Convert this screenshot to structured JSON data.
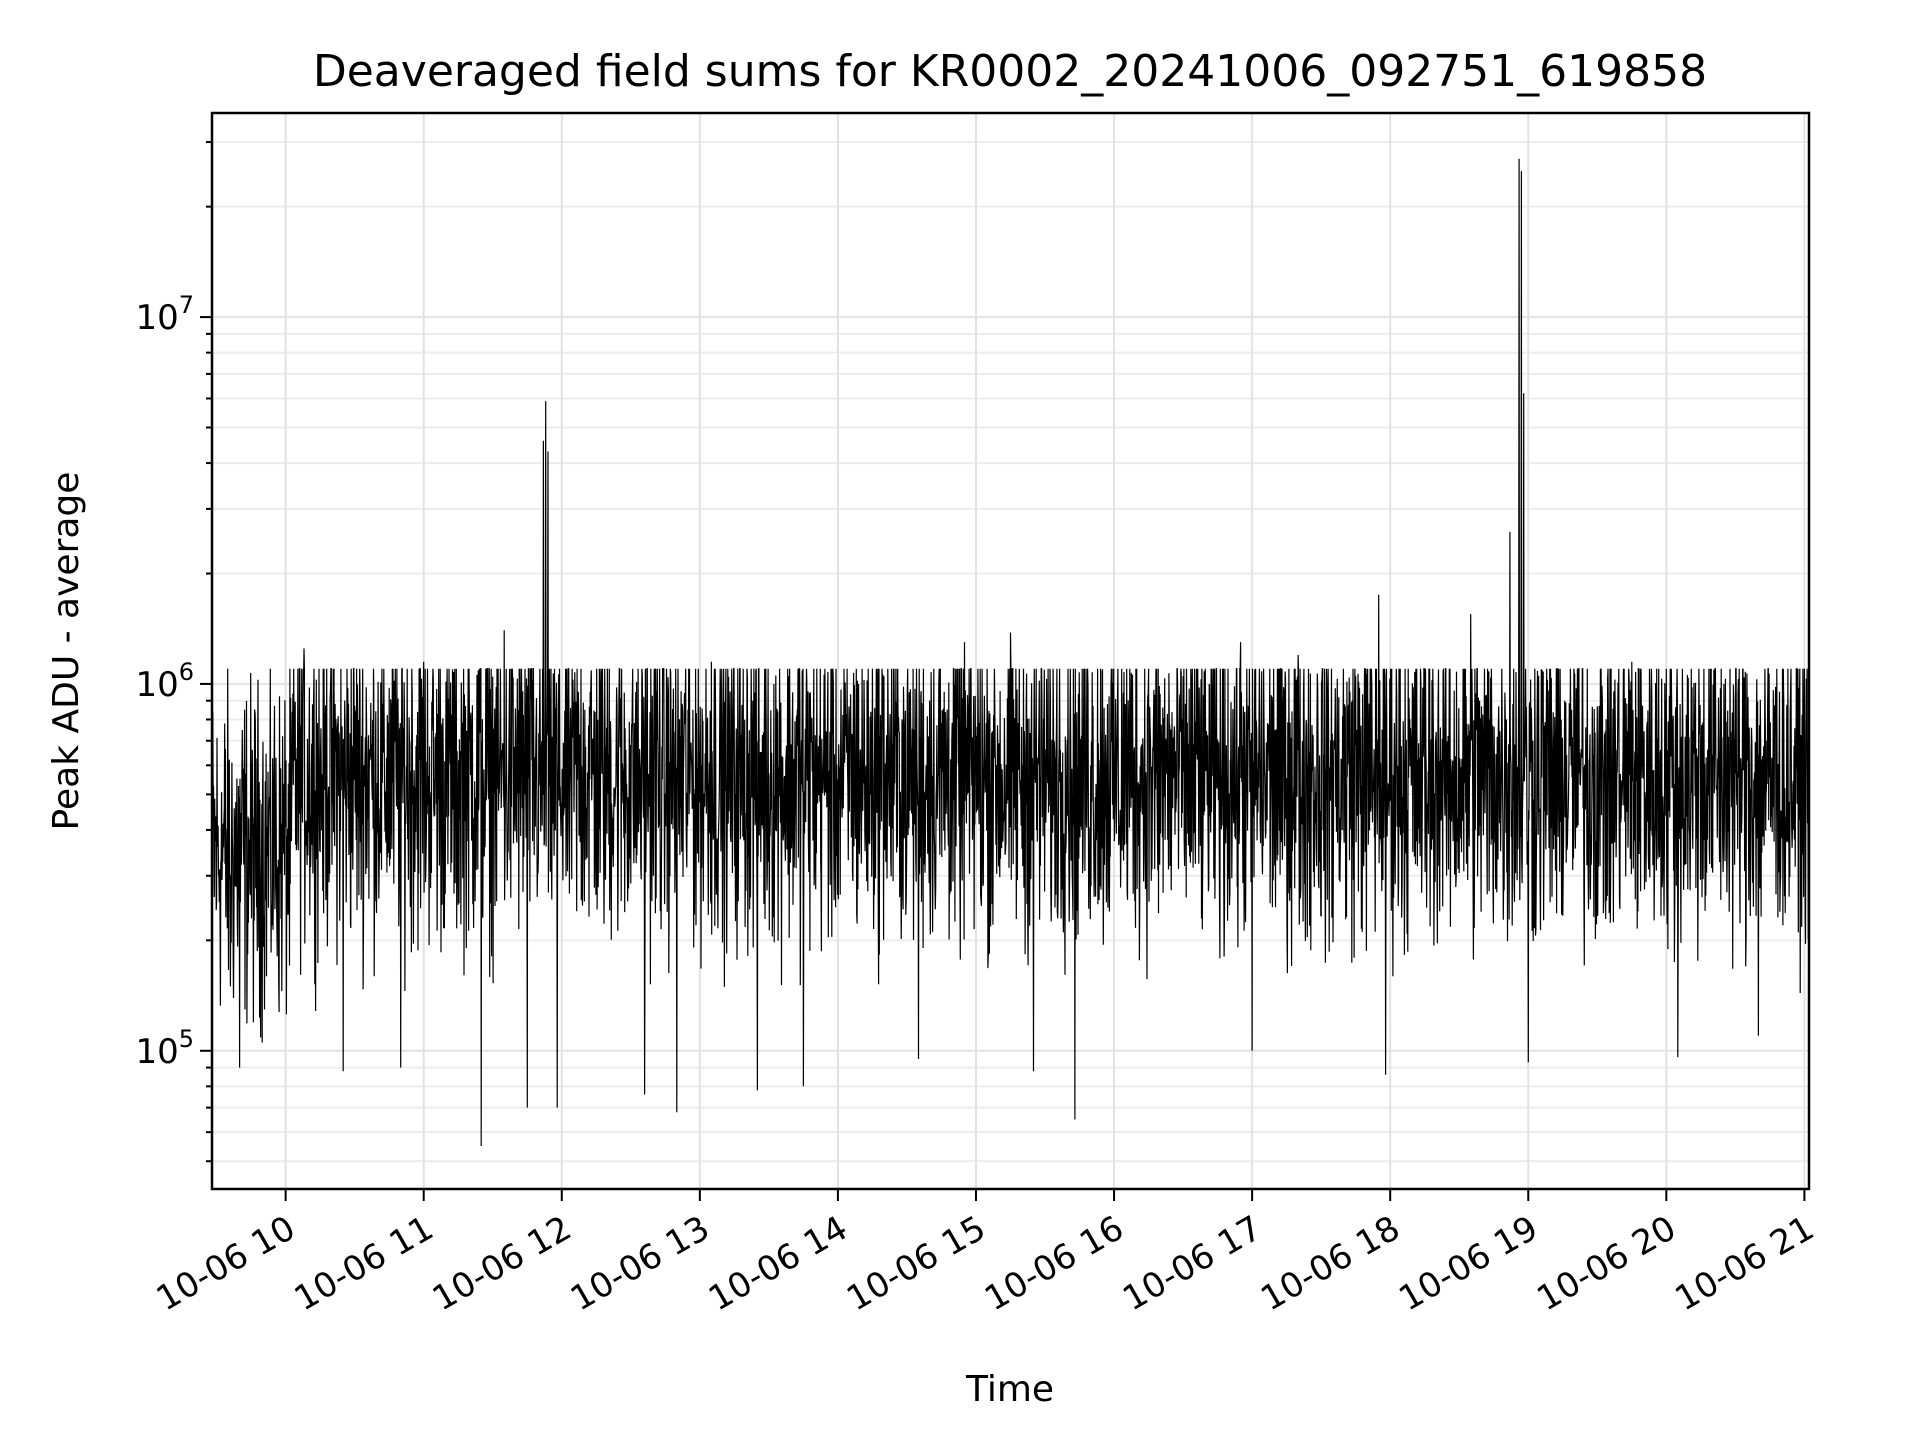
{
  "chart_data": {
    "type": "line",
    "title": "Deaveraged field sums for KR0002_20241006_092751_619858",
    "xlabel": "Time",
    "ylabel": "Peak ADU - average",
    "yscale": "log",
    "xlim": [
      "2024-10-06 09:28",
      "2024-10-06 21:02"
    ],
    "ylim": [
      42000,
      36000000
    ],
    "grid": true,
    "x_ticks": [
      "10-06 10",
      "10-06 11",
      "10-06 12",
      "10-06 13",
      "10-06 14",
      "10-06 15",
      "10-06 16",
      "10-06 17",
      "10-06 18",
      "10-06 19",
      "10-06 20",
      "10-06 21"
    ],
    "y_ticks": [
      {
        "value": 100000,
        "base": "10",
        "exp": "5"
      },
      {
        "value": 1000000,
        "base": "10",
        "exp": "6"
      },
      {
        "value": 10000000,
        "base": "10",
        "exp": "7"
      }
    ],
    "series": [
      {
        "color": "#000000",
        "points": [
          [
            "2024-10-06 09:28",
            260000
          ],
          [
            "2024-10-06 09:32",
            330000
          ],
          [
            "2024-10-06 09:36",
            150000
          ],
          [
            "2024-10-06 09:40",
            90000
          ],
          [
            "2024-10-06 09:45",
            420000
          ],
          [
            "2024-10-06 09:50",
            500000
          ],
          [
            "2024-10-06 09:55",
            620000
          ],
          [
            "2024-10-06 10:00",
            480000
          ],
          [
            "2024-10-06 10:08",
            1250000
          ],
          [
            "2024-10-06 10:15",
            350000
          ],
          [
            "2024-10-06 10:25",
            88000
          ],
          [
            "2024-10-06 10:35",
            980000
          ],
          [
            "2024-10-06 10:50",
            90000
          ],
          [
            "2024-10-06 11:00",
            1150000
          ],
          [
            "2024-10-06 11:15",
            250000
          ],
          [
            "2024-10-06 11:25",
            55000
          ],
          [
            "2024-10-06 11:35",
            1400000
          ],
          [
            "2024-10-06 11:45",
            70000
          ],
          [
            "2024-10-06 11:52",
            4600000
          ],
          [
            "2024-10-06 11:53",
            5900000
          ],
          [
            "2024-10-06 11:54",
            4300000
          ],
          [
            "2024-10-06 11:58",
            70000
          ],
          [
            "2024-10-06 12:10",
            850000
          ],
          [
            "2024-10-06 12:25",
            1100000
          ],
          [
            "2024-10-06 12:36",
            76000
          ],
          [
            "2024-10-06 12:50",
            68000
          ],
          [
            "2024-10-06 13:05",
            1150000
          ],
          [
            "2024-10-06 13:25",
            78000
          ],
          [
            "2024-10-06 13:45",
            80000
          ],
          [
            "2024-10-06 14:00",
            550000
          ],
          [
            "2024-10-06 14:20",
            1050000
          ],
          [
            "2024-10-06 14:35",
            95000
          ],
          [
            "2024-10-06 14:55",
            1300000
          ],
          [
            "2024-10-06 15:15",
            1380000
          ],
          [
            "2024-10-06 15:25",
            88000
          ],
          [
            "2024-10-06 15:40",
            1100000
          ],
          [
            "2024-10-06 15:43",
            65000
          ],
          [
            "2024-10-06 16:05",
            850000
          ],
          [
            "2024-10-06 16:30",
            1050000
          ],
          [
            "2024-10-06 16:55",
            1300000
          ],
          [
            "2024-10-06 17:00",
            100000
          ],
          [
            "2024-10-06 17:20",
            1200000
          ],
          [
            "2024-10-06 17:45",
            1050000
          ],
          [
            "2024-10-06 17:55",
            1750000
          ],
          [
            "2024-10-06 17:58",
            86000
          ],
          [
            "2024-10-06 18:15",
            650000
          ],
          [
            "2024-10-06 18:35",
            1550000
          ],
          [
            "2024-10-06 18:52",
            2600000
          ],
          [
            "2024-10-06 18:56",
            27000000
          ],
          [
            "2024-10-06 18:57",
            25000000
          ],
          [
            "2024-10-06 18:58",
            6200000
          ],
          [
            "2024-10-06 19:00",
            93000
          ],
          [
            "2024-10-06 19:20",
            1050000
          ],
          [
            "2024-10-06 19:45",
            1150000
          ],
          [
            "2024-10-06 20:05",
            96000
          ],
          [
            "2024-10-06 20:25",
            1000000
          ],
          [
            "2024-10-06 20:40",
            110000
          ],
          [
            "2024-10-06 21:00",
            1100000
          ],
          [
            "2024-10-06 21:02",
            600000
          ]
        ]
      }
    ]
  }
}
